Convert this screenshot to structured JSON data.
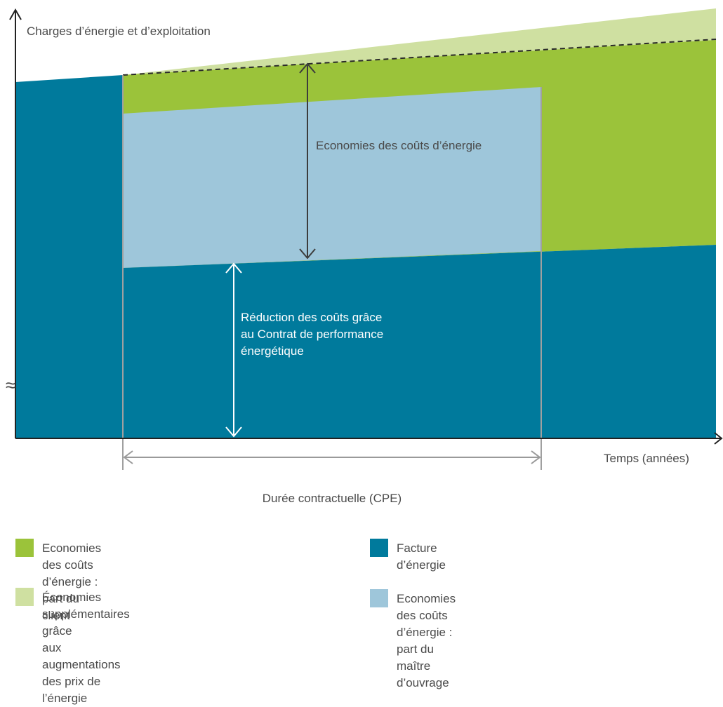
{
  "diagram": {
    "y_axis_label": "Charges d’énergie et d’exploitation",
    "x_axis_label": "Temps (années)",
    "duration_label": "Durée contractuelle (CPE)",
    "savings_label": "Economies des coûts d’énergie",
    "reduction_label": [
      "Réduction des coûts grâce",
      "au Contrat de performance",
      "énergétique"
    ],
    "axis_break_symbol": "≈"
  },
  "colors": {
    "energy_bill": "#007a9c",
    "client_share": "#9bc33a",
    "extra_savings": "#cfe0a1",
    "owner_share": "#9ec6da",
    "axis": "#222222",
    "arrow_dark": "#3c3c3c",
    "arrow_gray": "#9a9a9a"
  },
  "legend": [
    {
      "color": "#9bc33a",
      "lines": [
        "Economies des coûts d’énergie :",
        "part du client"
      ]
    },
    {
      "color": "#007a9c",
      "lines": [
        "Facture d’énergie"
      ]
    },
    {
      "color": "#cfe0a1",
      "lines": [
        "Économies supplémentaires grâce",
        "aux augmentations des prix de l’énergie"
      ]
    },
    {
      "color": "#9ec6da",
      "lines": [
        "Economies des coûts d’énergie :",
        "part du maître d’ouvrage"
      ]
    }
  ]
}
